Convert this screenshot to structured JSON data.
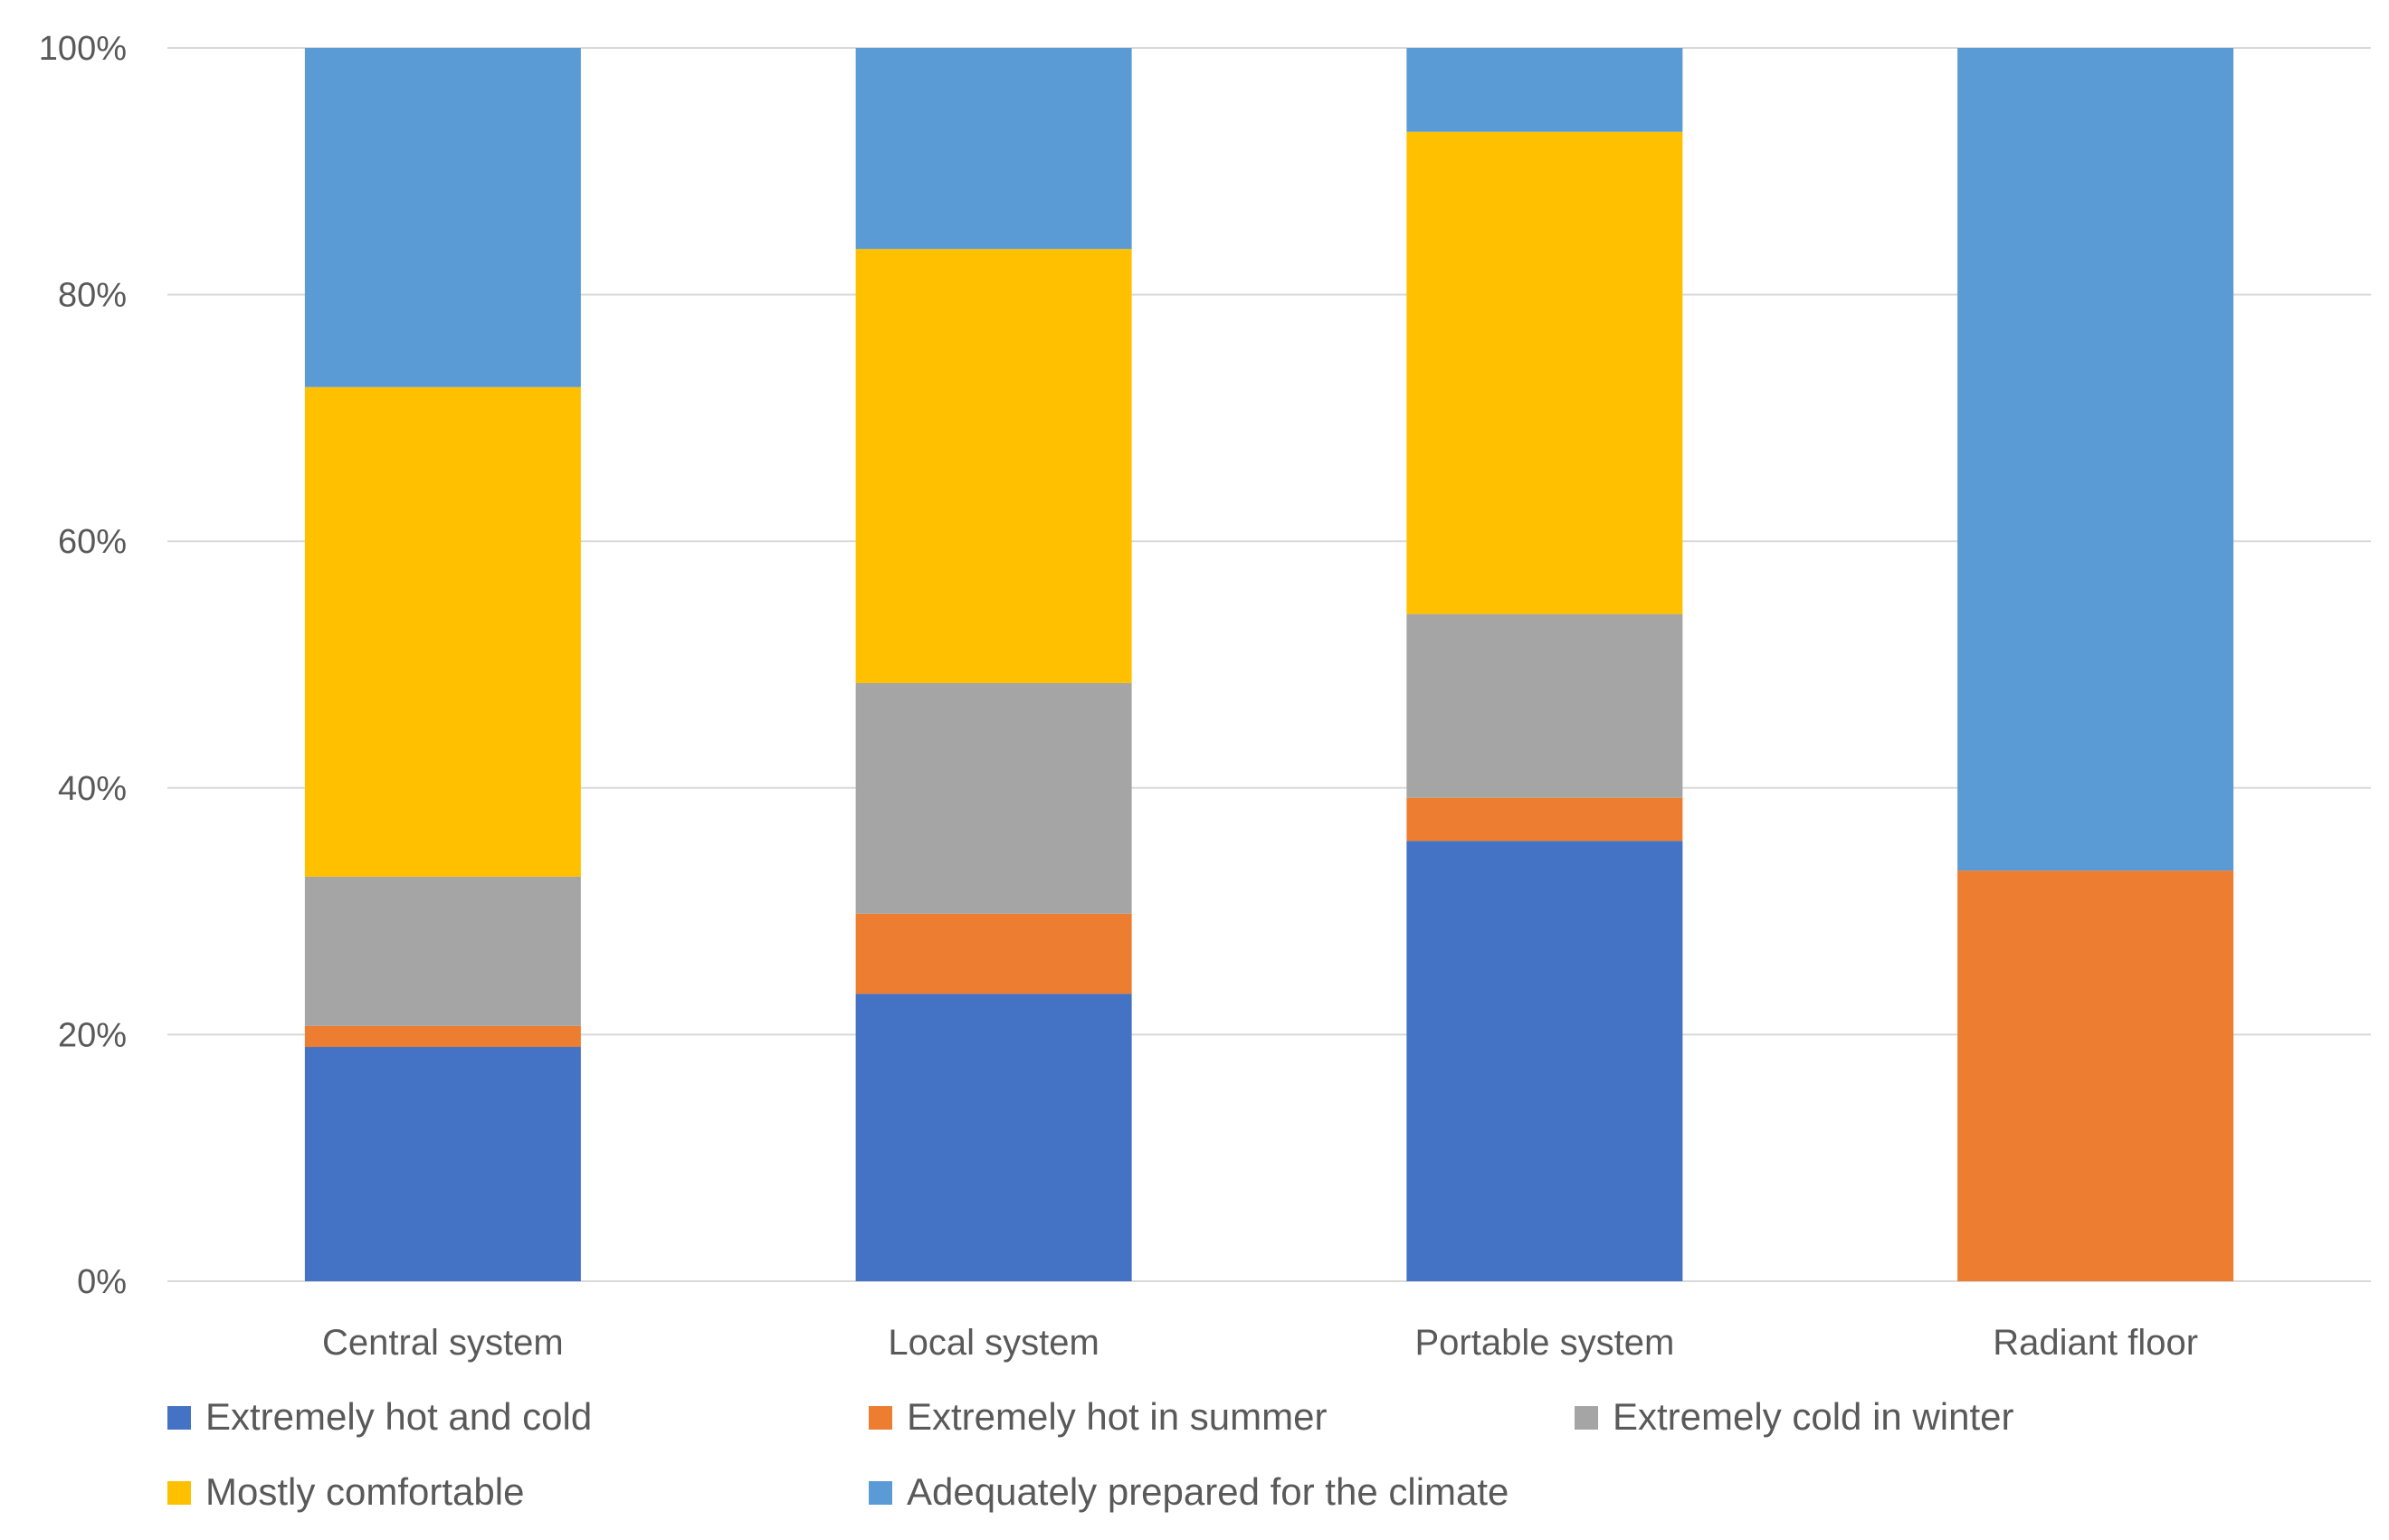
{
  "chart_data": {
    "type": "bar",
    "stacked": true,
    "percent_stacked": true,
    "title": "",
    "xlabel": "",
    "ylabel": "",
    "ylim": [
      0,
      100
    ],
    "yticks": [
      "0%",
      "20%",
      "40%",
      "60%",
      "80%",
      "100%"
    ],
    "ytick_values": [
      0,
      20,
      40,
      60,
      80,
      100
    ],
    "grid": true,
    "legend_position": "bottom",
    "categories": [
      "Central system",
      "Local system",
      "Portable system",
      "Radiant floor"
    ],
    "series": [
      {
        "name": "Extremely hot and cold",
        "color": "#4472C4",
        "values": [
          19,
          23.3,
          35.7,
          0
        ]
      },
      {
        "name": "Extremely hot in summer",
        "color": "#ED7D31",
        "values": [
          1.7,
          6.5,
          3.5,
          33.3
        ]
      },
      {
        "name": "Extremely cold in winter",
        "color": "#A5A5A5",
        "values": [
          12.1,
          18.7,
          14.9,
          0
        ]
      },
      {
        "name": "Mostly comfortable",
        "color": "#FFC000",
        "values": [
          39.7,
          35.2,
          39.1,
          0
        ]
      },
      {
        "name": "Adequately prepared for the climate",
        "color": "#5B9BD5",
        "values": [
          27.5,
          16.3,
          6.8,
          66.7
        ]
      }
    ]
  }
}
